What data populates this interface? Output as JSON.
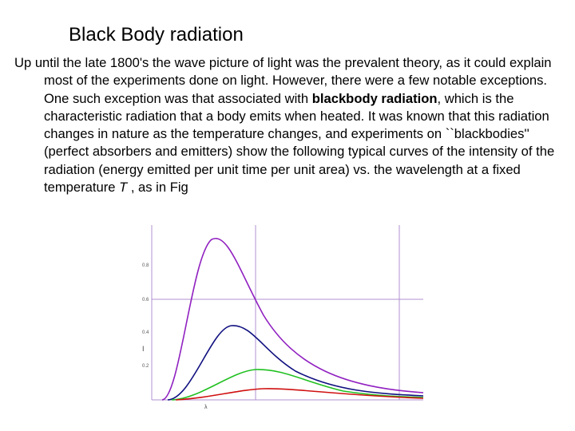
{
  "header": {
    "title": "Black Body radiation"
  },
  "body": {
    "text_before": "Up until the late 1800's the wave picture of light was the prevalent theory, as it could explain most of the experiments done on light. However, there were a few notable exceptions. One such exception was that associated with ",
    "bold": "blackbody radiation",
    "text_middle": ", which is the characteristic radiation that a body emits when heated. It was known that this radiation changes in nature as the temperature changes, and experiments on ``blackbodies'' (perfect absorbers and emitters) show the following typical curves of the intensity of the radiation (energy emitted per unit time per unit area) vs. the wavelength at a fixed temperature ",
    "italic": "T",
    "text_after": " , as in Fig"
  },
  "figure": {
    "y_axis_label": "I",
    "x_axis_label": "λ",
    "yticks": [
      "0.8",
      "0.6",
      "0.4",
      "0.2"
    ]
  }
}
